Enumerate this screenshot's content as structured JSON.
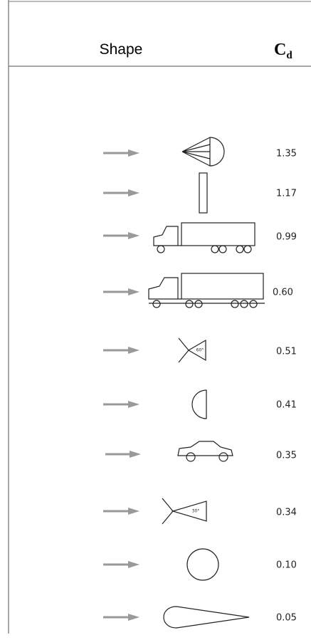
{
  "header": {
    "shape": "Shape",
    "cd": "C",
    "cd_subscript": "d"
  },
  "rows": [
    {
      "value": "1.35"
    },
    {
      "value": "1.17"
    },
    {
      "value": "0.99"
    },
    {
      "value": "0.60"
    },
    {
      "value": "0.51",
      "angle": "60°"
    },
    {
      "value": "0.41"
    },
    {
      "value": "0.35"
    },
    {
      "value": "0.34",
      "angle": "30°"
    },
    {
      "value": "0.10"
    },
    {
      "value": "0.05"
    }
  ]
}
